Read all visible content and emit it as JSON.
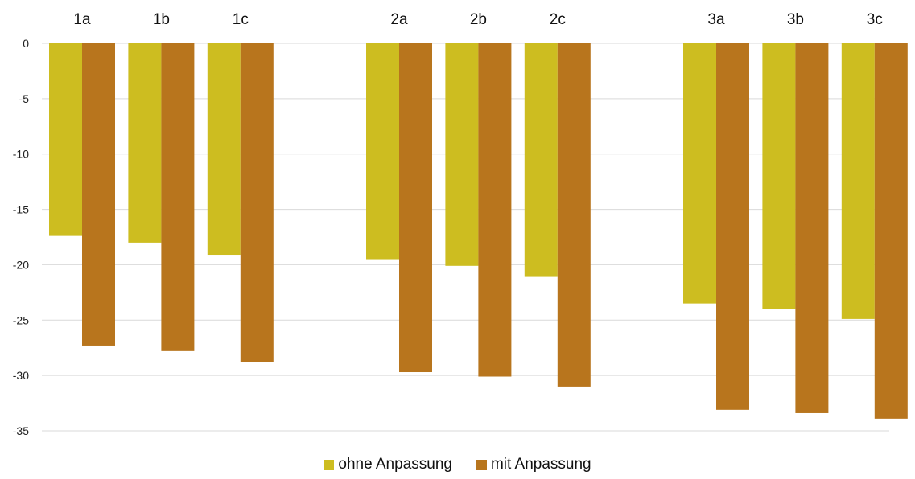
{
  "chart_data": {
    "type": "bar",
    "title": "",
    "xlabel": "",
    "ylabel": "",
    "categories": [
      "1a",
      "1b",
      "1c",
      "2a",
      "2b",
      "2c",
      "3a",
      "3b",
      "3c"
    ],
    "category_groups": [
      [
        "1a",
        "1b",
        "1c"
      ],
      [
        "2a",
        "2b",
        "2c"
      ],
      [
        "3a",
        "3b",
        "3c"
      ]
    ],
    "series": [
      {
        "name": "ohne Anpassung",
        "color": "#CDBD20",
        "values": [
          -17.4,
          -18.0,
          -19.1,
          -19.5,
          -20.1,
          -21.1,
          -23.5,
          -24.0,
          -24.9
        ]
      },
      {
        "name": "mit Anpassung",
        "color": "#B8751D",
        "values": [
          -27.3,
          -27.8,
          -28.8,
          -29.7,
          -30.1,
          -31.0,
          -33.1,
          -33.4,
          -33.9
        ]
      }
    ],
    "ylim": [
      -35,
      0
    ],
    "yticks": [
      0,
      -5,
      -10,
      -15,
      -20,
      -25,
      -30,
      -35
    ],
    "ytick_labels": [
      "0",
      "-5",
      "-10",
      "-15",
      "-20",
      "-25",
      "-30",
      "-35"
    ],
    "category_axis_position": "top",
    "grid": true,
    "gridline_color": "#D9D9D9",
    "legend_position": "bottom"
  }
}
